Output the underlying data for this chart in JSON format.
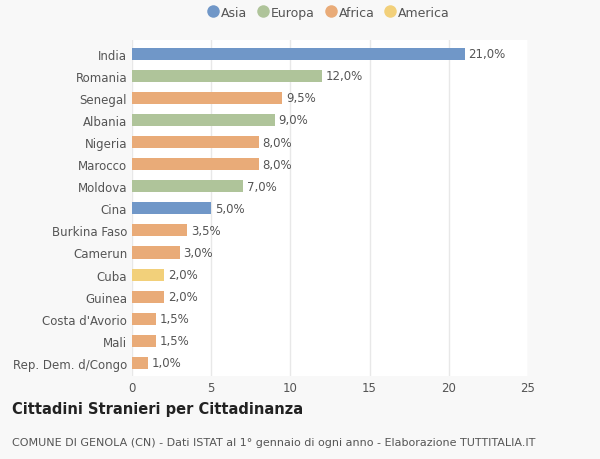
{
  "countries": [
    "India",
    "Romania",
    "Senegal",
    "Albania",
    "Nigeria",
    "Marocco",
    "Moldova",
    "Cina",
    "Burkina Faso",
    "Camerun",
    "Cuba",
    "Guinea",
    "Costa d'Avorio",
    "Mali",
    "Rep. Dem. d/Congo"
  ],
  "values": [
    21.0,
    12.0,
    9.5,
    9.0,
    8.0,
    8.0,
    7.0,
    5.0,
    3.5,
    3.0,
    2.0,
    2.0,
    1.5,
    1.5,
    1.0
  ],
  "labels": [
    "21,0%",
    "12,0%",
    "9,5%",
    "9,0%",
    "8,0%",
    "8,0%",
    "7,0%",
    "5,0%",
    "3,5%",
    "3,0%",
    "2,0%",
    "2,0%",
    "1,5%",
    "1,5%",
    "1,0%"
  ],
  "colors": [
    "#7097c8",
    "#afc49a",
    "#e9ab78",
    "#afc49a",
    "#e9ab78",
    "#e9ab78",
    "#afc49a",
    "#7097c8",
    "#e9ab78",
    "#e9ab78",
    "#f2d07a",
    "#e9ab78",
    "#e9ab78",
    "#e9ab78",
    "#e9ab78"
  ],
  "legend_labels": [
    "Asia",
    "Europa",
    "Africa",
    "America"
  ],
  "legend_colors": [
    "#7097c8",
    "#afc49a",
    "#e9ab78",
    "#f2d07a"
  ],
  "xlim": [
    0,
    25
  ],
  "xticks": [
    0,
    5,
    10,
    15,
    20,
    25
  ],
  "title": "Cittadini Stranieri per Cittadinanza",
  "subtitle": "COMUNE DI GENOLA (CN) - Dati ISTAT al 1° gennaio di ogni anno - Elaborazione TUTTITALIA.IT",
  "plot_bg_color": "#ffffff",
  "fig_bg_color": "#f8f8f8",
  "grid_color": "#e8e8e8",
  "bar_height": 0.55,
  "label_fontsize": 8.5,
  "tick_fontsize": 8.5,
  "title_fontsize": 10.5,
  "subtitle_fontsize": 8.0,
  "text_color": "#555555",
  "title_color": "#222222"
}
